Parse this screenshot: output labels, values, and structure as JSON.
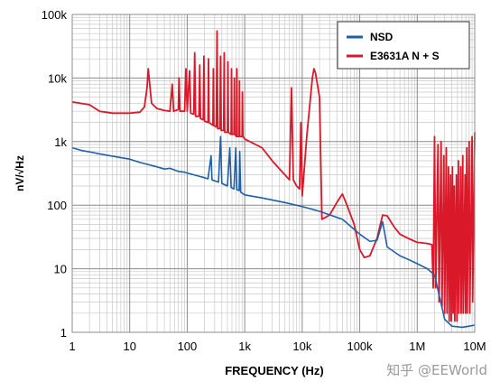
{
  "chart_data": {
    "type": "line",
    "xscale": "log",
    "yscale": "log",
    "xlim": [
      1,
      10000000
    ],
    "ylim": [
      1,
      100000
    ],
    "xlabel": "FREQUENCY (Hz)",
    "ylabel": "nV/√Hz",
    "grid": true,
    "legend": "top-right",
    "x_ticks": [
      {
        "value": 1,
        "label": "1"
      },
      {
        "value": 10,
        "label": "10"
      },
      {
        "value": 100,
        "label": "100"
      },
      {
        "value": 1000,
        "label": "1k"
      },
      {
        "value": 10000,
        "label": "10k"
      },
      {
        "value": 100000,
        "label": "100k"
      },
      {
        "value": 1000000,
        "label": "1M"
      },
      {
        "value": 10000000,
        "label": "10M"
      }
    ],
    "y_ticks": [
      {
        "value": 1,
        "label": "1"
      },
      {
        "value": 10,
        "label": "10"
      },
      {
        "value": 100,
        "label": "100"
      },
      {
        "value": 1000,
        "label": "1k"
      },
      {
        "value": 10000,
        "label": "10k"
      },
      {
        "value": 100000,
        "label": "100k"
      }
    ],
    "series": [
      {
        "name": "NSD",
        "color": "#1f5fa8",
        "points": [
          [
            1,
            800
          ],
          [
            1.5,
            720
          ],
          [
            2,
            690
          ],
          [
            3,
            640
          ],
          [
            5,
            590
          ],
          [
            7,
            560
          ],
          [
            10,
            530
          ],
          [
            15,
            470
          ],
          [
            20,
            440
          ],
          [
            30,
            400
          ],
          [
            40,
            370
          ],
          [
            50,
            380
          ],
          [
            70,
            340
          ],
          [
            90,
            330
          ],
          [
            100,
            320
          ],
          [
            150,
            290
          ],
          [
            200,
            270
          ],
          [
            230,
            260
          ],
          [
            260,
            600
          ],
          [
            270,
            250
          ],
          [
            350,
            230
          ],
          [
            380,
            1200
          ],
          [
            400,
            220
          ],
          [
            500,
            200
          ],
          [
            550,
            800
          ],
          [
            580,
            190
          ],
          [
            650,
            180
          ],
          [
            700,
            800
          ],
          [
            730,
            175
          ],
          [
            800,
            170
          ],
          [
            820,
            700
          ],
          [
            850,
            160
          ],
          [
            1000,
            145
          ],
          [
            2000,
            130
          ],
          [
            5000,
            110
          ],
          [
            10000,
            95
          ],
          [
            20000,
            80
          ],
          [
            50000,
            60
          ],
          [
            100000,
            35
          ],
          [
            150000,
            27
          ],
          [
            200000,
            28
          ],
          [
            250000,
            55
          ],
          [
            300000,
            22
          ],
          [
            500000,
            16
          ],
          [
            700000,
            14
          ],
          [
            1000000,
            12
          ],
          [
            1500000,
            10
          ],
          [
            2000000,
            8
          ],
          [
            3000000,
            1.6
          ],
          [
            4000000,
            1.25
          ],
          [
            6000000,
            1.2
          ],
          [
            8000000,
            1.25
          ],
          [
            10000000,
            1.3
          ]
        ]
      },
      {
        "name": "E3631A N + S",
        "color": "#d9182a",
        "points": [
          [
            1,
            4200
          ],
          [
            2,
            3800
          ],
          [
            3,
            3000
          ],
          [
            5,
            2800
          ],
          [
            10,
            2800
          ],
          [
            15,
            2900
          ],
          [
            18,
            3500
          ],
          [
            20,
            7000
          ],
          [
            21,
            14000
          ],
          [
            22,
            9000
          ],
          [
            24,
            4000
          ],
          [
            30,
            3300
          ],
          [
            40,
            3100
          ],
          [
            50,
            3000
          ],
          [
            55,
            8000
          ],
          [
            58,
            3000
          ],
          [
            70,
            3200
          ],
          [
            72,
            10000
          ],
          [
            75,
            3000
          ],
          [
            90,
            3000
          ],
          [
            95,
            14000
          ],
          [
            100,
            3000
          ],
          [
            110,
            13000
          ],
          [
            115,
            2800
          ],
          [
            130,
            2700
          ],
          [
            135,
            25000
          ],
          [
            140,
            2500
          ],
          [
            160,
            2500
          ],
          [
            165,
            16000
          ],
          [
            170,
            2300
          ],
          [
            190,
            2200
          ],
          [
            195,
            22000
          ],
          [
            200,
            2100
          ],
          [
            230,
            2000
          ],
          [
            235,
            20000
          ],
          [
            240,
            2000
          ],
          [
            280,
            1800
          ],
          [
            285,
            14000
          ],
          [
            290,
            1800
          ],
          [
            320,
            1700
          ],
          [
            330,
            55000
          ],
          [
            340,
            1600
          ],
          [
            370,
            1600
          ],
          [
            380,
            22000
          ],
          [
            390,
            1500
          ],
          [
            430,
            1500
          ],
          [
            440,
            25000
          ],
          [
            450,
            1400
          ],
          [
            500,
            1400
          ],
          [
            510,
            18000
          ],
          [
            520,
            1400
          ],
          [
            580,
            1300
          ],
          [
            590,
            14000
          ],
          [
            600,
            1300
          ],
          [
            650,
            1300
          ],
          [
            660,
            10000
          ],
          [
            670,
            1300
          ],
          [
            720,
            1200
          ],
          [
            730,
            14000
          ],
          [
            740,
            1200
          ],
          [
            800,
            1200
          ],
          [
            810,
            9000
          ],
          [
            820,
            1200
          ],
          [
            900,
            1200
          ],
          [
            910,
            6000
          ],
          [
            930,
            1200
          ],
          [
            1000,
            1100
          ],
          [
            2000,
            800
          ],
          [
            3000,
            500
          ],
          [
            5000,
            300
          ],
          [
            6000,
            250
          ],
          [
            6500,
            7000
          ],
          [
            7000,
            250
          ],
          [
            8000,
            200
          ],
          [
            9000,
            180
          ],
          [
            9500,
            2000
          ],
          [
            10000,
            140
          ],
          [
            12000,
            1200
          ],
          [
            15000,
            10000
          ],
          [
            16000,
            14000
          ],
          [
            17000,
            12000
          ],
          [
            20000,
            5000
          ],
          [
            22000,
            60
          ],
          [
            30000,
            70
          ],
          [
            40000,
            110
          ],
          [
            50000,
            150
          ],
          [
            60000,
            100
          ],
          [
            80000,
            50
          ],
          [
            100000,
            20
          ],
          [
            120000,
            15
          ],
          [
            150000,
            16
          ],
          [
            200000,
            30
          ],
          [
            250000,
            70
          ],
          [
            300000,
            68
          ],
          [
            400000,
            45
          ],
          [
            500000,
            35
          ],
          [
            700000,
            30
          ],
          [
            1000000,
            26
          ],
          [
            1500000,
            25
          ],
          [
            1800000,
            24
          ],
          [
            1900000,
            5
          ],
          [
            2000000,
            1200
          ],
          [
            2100000,
            5
          ],
          [
            2300000,
            900
          ],
          [
            2400000,
            3
          ],
          [
            2600000,
            1000
          ],
          [
            2700000,
            2.5
          ],
          [
            2900000,
            600
          ],
          [
            3000000,
            2
          ],
          [
            3200000,
            800
          ],
          [
            3300000,
            2
          ],
          [
            3500000,
            400
          ],
          [
            3600000,
            1.5
          ],
          [
            3800000,
            300
          ],
          [
            3900000,
            1.5
          ],
          [
            4100000,
            400
          ],
          [
            4200000,
            2
          ],
          [
            4400000,
            200
          ],
          [
            4500000,
            1.5
          ],
          [
            4800000,
            300
          ],
          [
            4900000,
            1.5
          ],
          [
            5200000,
            500
          ],
          [
            5300000,
            2
          ],
          [
            5700000,
            400
          ],
          [
            5800000,
            2
          ],
          [
            6200000,
            600
          ],
          [
            6300000,
            2
          ],
          [
            6800000,
            300
          ],
          [
            6900000,
            2
          ],
          [
            7300000,
            800
          ],
          [
            7400000,
            2
          ],
          [
            8000000,
            1000
          ],
          [
            8200000,
            2
          ],
          [
            9000000,
            1200
          ],
          [
            9200000,
            3
          ],
          [
            10000000,
            1400
          ]
        ]
      }
    ]
  },
  "watermark": "知乎 @EEWorld"
}
